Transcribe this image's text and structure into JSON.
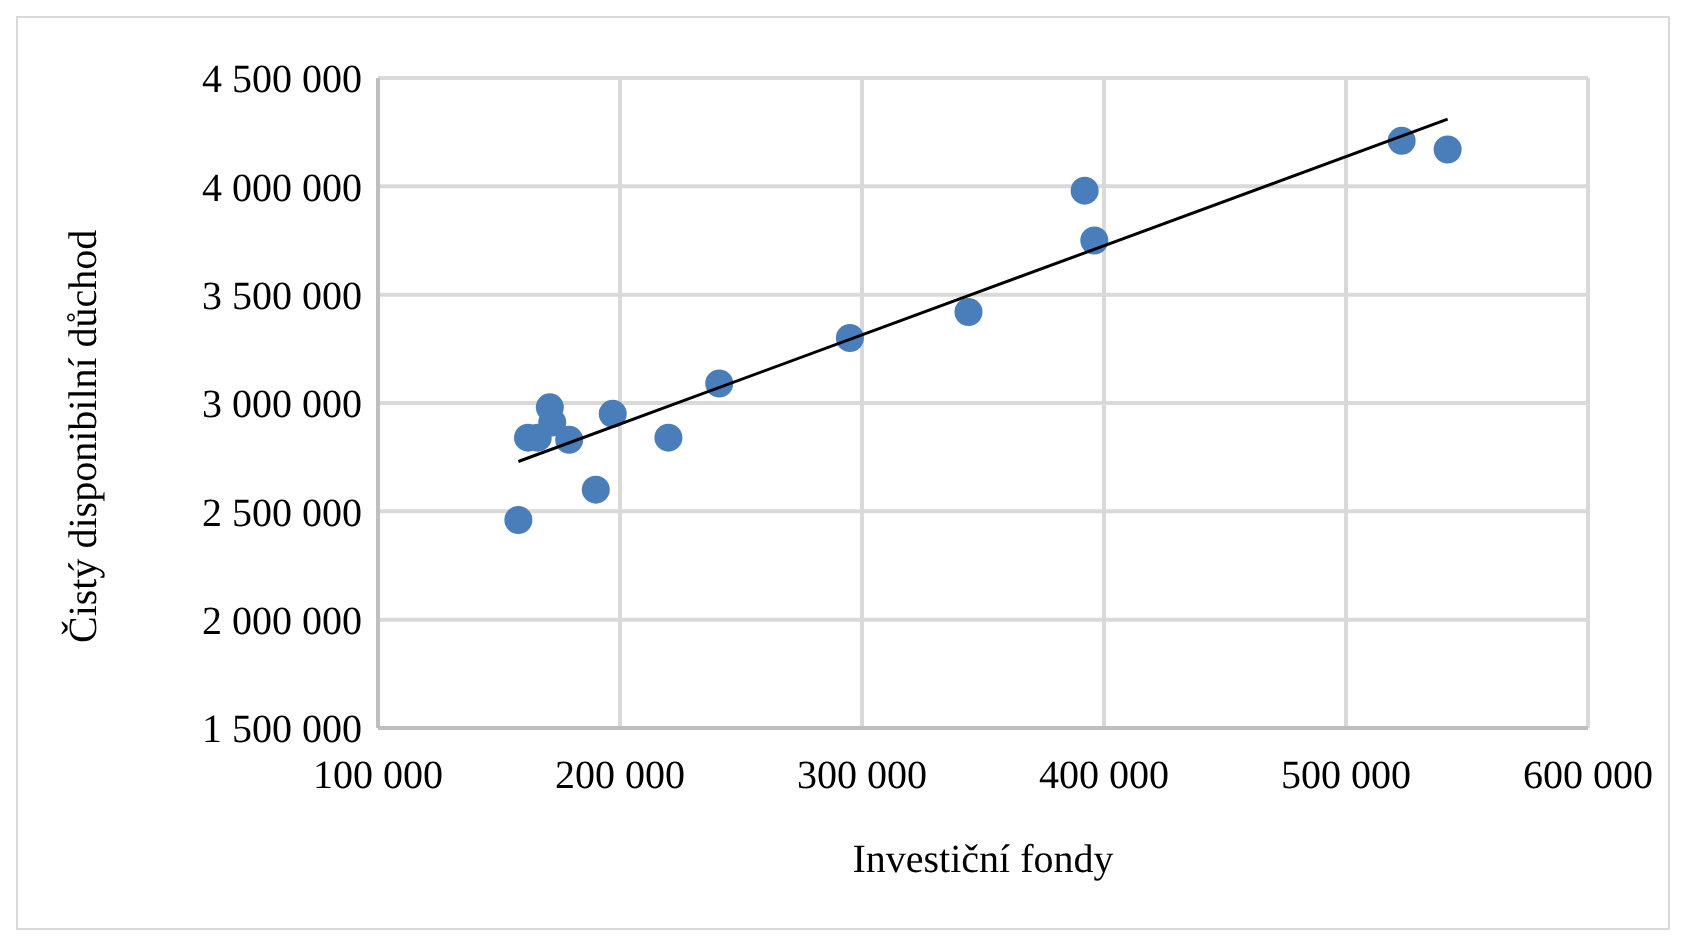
{
  "chart_data": {
    "type": "scatter",
    "xlabel": "Investiční fondy",
    "ylabel": "Čistý disponibilní důchod",
    "xlim": [
      100000,
      600000
    ],
    "xticks": [
      {
        "value": 100000,
        "label": "100 000"
      },
      {
        "value": 200000,
        "label": "200 000"
      },
      {
        "value": 300000,
        "label": "300 000"
      },
      {
        "value": 400000,
        "label": "400 000"
      },
      {
        "value": 500000,
        "label": "500 000"
      },
      {
        "value": 600000,
        "label": "600 000"
      }
    ],
    "ylim": [
      1500000,
      4500000
    ],
    "yticks": [
      {
        "value": 1500000,
        "label": "1 500 000"
      },
      {
        "value": 2000000,
        "label": "2 000 000"
      },
      {
        "value": 2500000,
        "label": "2 500 000"
      },
      {
        "value": 3000000,
        "label": "3 000 000"
      },
      {
        "value": 3500000,
        "label": "3 500 000"
      },
      {
        "value": 4000000,
        "label": "4 000 000"
      },
      {
        "value": 4500000,
        "label": "4 500 000"
      }
    ],
    "grid": true,
    "legend": false,
    "marker": "circle",
    "series": [
      {
        "type": "scatter",
        "color": "#4a7ebb",
        "x": [
          158000,
          162000,
          166000,
          171000,
          172000,
          179000,
          190000,
          197000,
          220000,
          241000,
          295000,
          344000,
          392000,
          396000,
          523000,
          542000
        ],
        "values": [
          2460000,
          2840000,
          2840000,
          2980000,
          2910000,
          2830000,
          2600000,
          2950000,
          2840000,
          3090000,
          3300000,
          3420000,
          3980000,
          3750000,
          4210000,
          4170000
        ]
      },
      {
        "type": "line",
        "color": "#000000",
        "marker": "none",
        "x": [
          158000,
          542000
        ],
        "values": [
          2730000,
          4310000
        ]
      }
    ]
  }
}
